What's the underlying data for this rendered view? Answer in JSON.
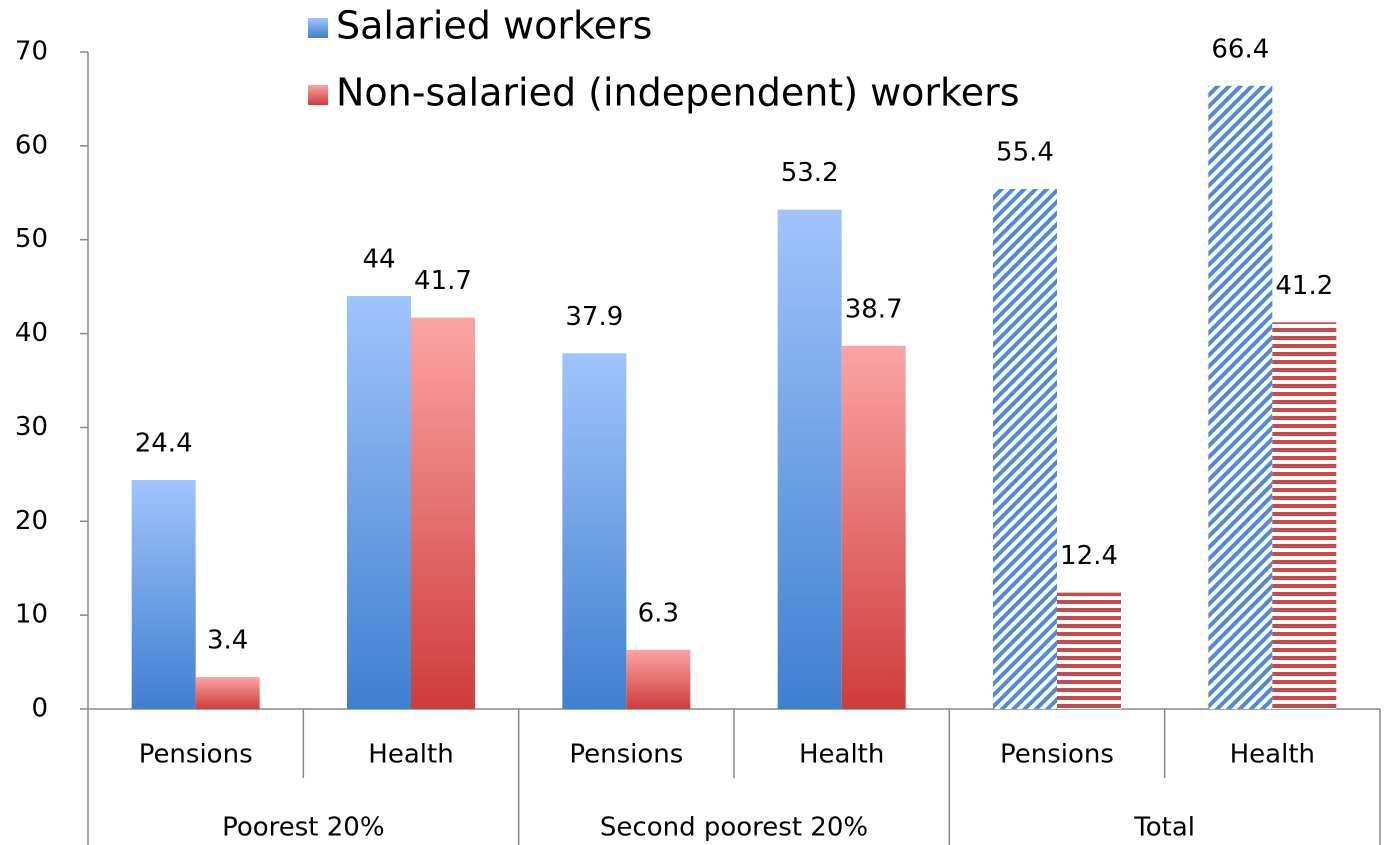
{
  "chart_data": {
    "type": "bar",
    "categories": [
      "Pensions",
      "Health",
      "Pensions",
      "Health",
      "Pensions",
      "Health"
    ],
    "groups": [
      {
        "name": "Poorest 20%"
      },
      {
        "name": "Second poorest 20%"
      },
      {
        "name": "Total",
        "hatched": true
      }
    ],
    "series": [
      {
        "name": "Salaried workers",
        "color": "#4f8ad8",
        "values": [
          24.4,
          44,
          37.9,
          53.2,
          55.4,
          66.4
        ]
      },
      {
        "name": "Non-salaried (independent) workers",
        "color": "#d84848",
        "values": [
          3.4,
          41.7,
          6.3,
          38.7,
          12.4,
          41.2
        ]
      }
    ],
    "ylim": [
      0,
      70
    ],
    "yticks": [
      0,
      10,
      20,
      30,
      40,
      50,
      60,
      70
    ],
    "grid": false,
    "legend": "top-center"
  }
}
